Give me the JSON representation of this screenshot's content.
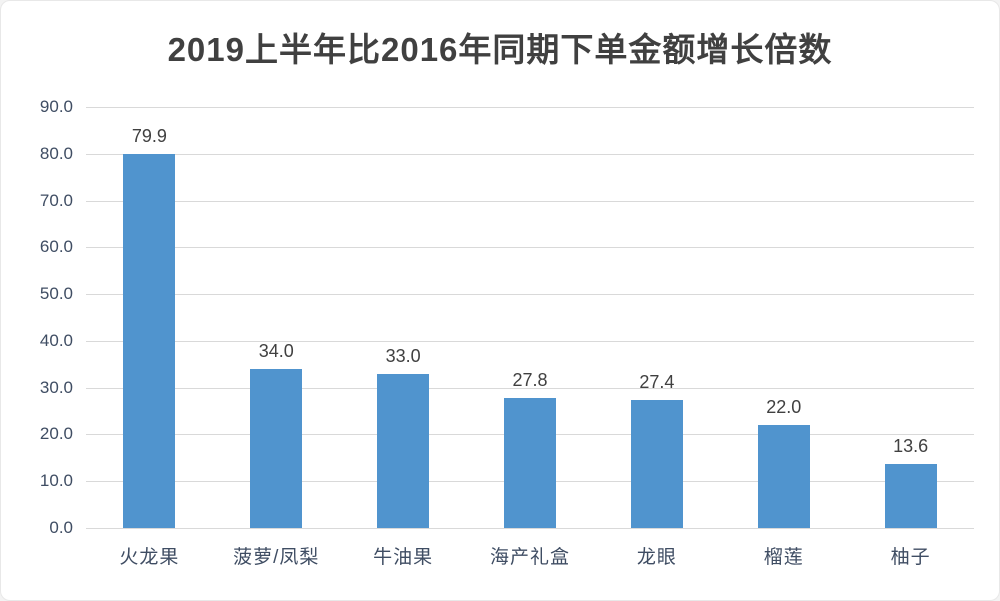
{
  "title": "2019上半年比2016年同期下单金额增长倍数",
  "colors": {
    "background": "#FFFFFF",
    "bar": "#5094CE",
    "grid": "#D9D9D9",
    "axis_label": "#3F4D63",
    "data_label": "#404040",
    "title": "#404040"
  },
  "chart_data": {
    "type": "bar",
    "title": "2019上半年比2016年同期下单金额增长倍数",
    "categories": [
      "火龙果",
      "菠萝/凤梨",
      "牛油果",
      "海产礼盒",
      "龙眼",
      "榴莲",
      "柚子"
    ],
    "values": [
      79.9,
      34.0,
      33.0,
      27.8,
      27.4,
      22.0,
      13.6
    ],
    "data_labels": [
      "79.9",
      "34.0",
      "33.0",
      "27.8",
      "27.4",
      "22.0",
      "13.6"
    ],
    "xlabel": "",
    "ylabel": "",
    "ylim": [
      0,
      90
    ],
    "ytick_interval": 10,
    "ytick_labels": [
      "0.0",
      "10.0",
      "20.0",
      "30.0",
      "40.0",
      "50.0",
      "60.0",
      "70.0",
      "80.0",
      "90.0"
    ],
    "grid": true,
    "legend": false,
    "legend_position": "none"
  }
}
